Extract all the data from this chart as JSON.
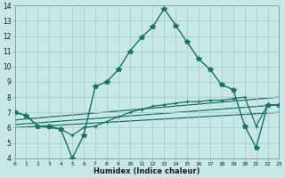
{
  "xlabel": "Humidex (Indice chaleur)",
  "background_color": "#c8e8e8",
  "line_color": "#1a6e64",
  "grid_color": "#a8cece",
  "xmin": 0,
  "xmax": 23,
  "ymin": 4,
  "ymax": 14,
  "line1_x": [
    0,
    1,
    2,
    3,
    4,
    5,
    6,
    7,
    8,
    9,
    10,
    11,
    12,
    13,
    14,
    15,
    16,
    17,
    18,
    19,
    20,
    21,
    22,
    23
  ],
  "line1_y": [
    7.0,
    6.8,
    6.1,
    6.1,
    5.9,
    4.0,
    5.5,
    8.7,
    9.0,
    9.8,
    11.0,
    11.9,
    12.6,
    13.8,
    12.7,
    11.6,
    10.5,
    9.8,
    8.8,
    8.5,
    6.1,
    4.7,
    7.5,
    7.5
  ],
  "line2_x": [
    0,
    1,
    2,
    3,
    4,
    5,
    6,
    7,
    8,
    9,
    10,
    11,
    12,
    13,
    14,
    15,
    16,
    17,
    18,
    19,
    20,
    21,
    22,
    23
  ],
  "line2_y": [
    7.0,
    6.8,
    6.1,
    6.0,
    5.9,
    5.5,
    6.0,
    6.1,
    6.4,
    6.7,
    7.0,
    7.2,
    7.4,
    7.5,
    7.6,
    7.7,
    7.7,
    7.8,
    7.8,
    7.9,
    8.0,
    6.1,
    7.5,
    7.5
  ],
  "line3_x": [
    0,
    23
  ],
  "line3_y": [
    6.5,
    8.0
  ],
  "line4_x": [
    0,
    23
  ],
  "line4_y": [
    6.2,
    7.5
  ],
  "line5_x": [
    0,
    23
  ],
  "line5_y": [
    6.0,
    7.0
  ]
}
